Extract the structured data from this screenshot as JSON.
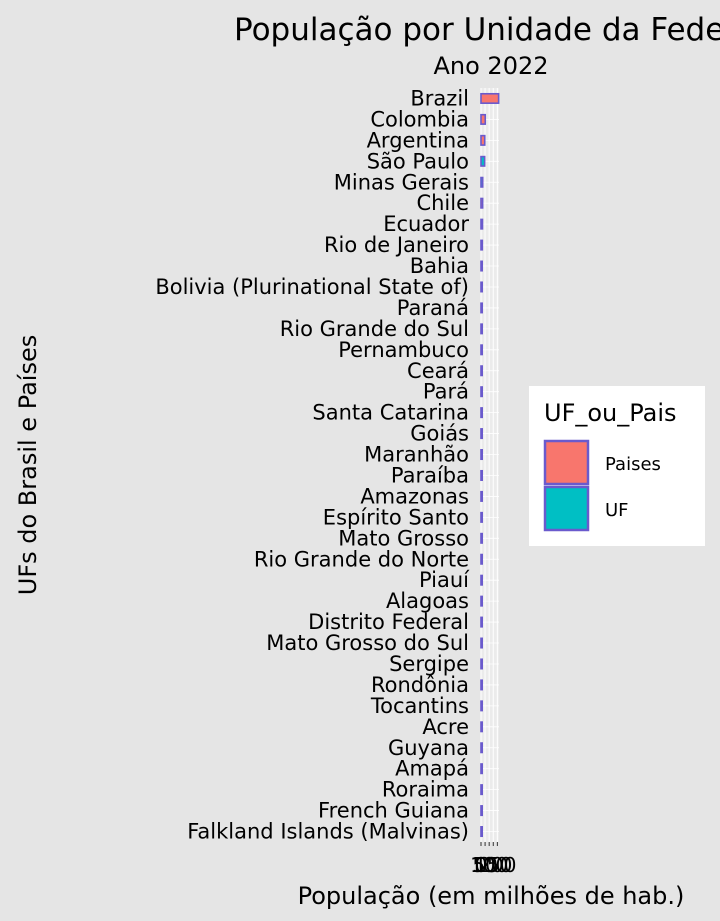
{
  "chart_data": {
    "type": "bar",
    "orientation": "horizontal",
    "title": "População por Unidade da Federação",
    "subtitle": "Ano 2022",
    "xlabel": "População (em milhões de hab.)",
    "ylabel": "UFs do Brasil e Países",
    "xlim": [
      0,
      220
    ],
    "x_ticks": [
      "0",
      "50",
      "100",
      "150",
      "200"
    ],
    "grid": true,
    "legend": {
      "title": "UF_ou_Pais",
      "position": "right",
      "entries": [
        {
          "label": "Paises",
          "color": "#f8766d"
        },
        {
          "label": "UF",
          "color": "#00bfc4"
        }
      ]
    },
    "bar_outline_color": "#6a5acd",
    "categories": [
      "Brazil",
      "Colombia",
      "Argentina",
      "São Paulo",
      "Minas Gerais",
      "Chile",
      "Ecuador",
      "Rio de Janeiro",
      "Bahia",
      "Bolivia (Plurinational State of)",
      "Paraná",
      "Rio Grande do Sul",
      "Pernambuco",
      "Ceará",
      "Pará",
      "Santa Catarina",
      "Goiás",
      "Maranhão",
      "Paraíba",
      "Amazonas",
      "Espírito Santo",
      "Mato Grosso",
      "Rio Grande do Norte",
      "Piauí",
      "Alagoas",
      "Distrito Federal",
      "Mato Grosso do Sul",
      "Sergipe",
      "Rondônia",
      "Tocantins",
      "Acre",
      "Guyana",
      "Amapá",
      "Roraima",
      "French Guiana",
      "Falkland Islands (Malvinas)"
    ],
    "series": [
      {
        "name": "Paises",
        "values": [
          215.3,
          51.9,
          45.5,
          null,
          null,
          19.6,
          18.0,
          null,
          null,
          12.2,
          null,
          null,
          null,
          null,
          null,
          null,
          null,
          null,
          null,
          null,
          null,
          null,
          null,
          null,
          null,
          null,
          null,
          null,
          null,
          null,
          null,
          0.8,
          null,
          null,
          0.3,
          0.004
        ]
      },
      {
        "name": "UF",
        "values": [
          null,
          null,
          null,
          44.4,
          20.5,
          null,
          null,
          16.1,
          14.1,
          null,
          11.4,
          10.9,
          9.1,
          8.8,
          8.1,
          7.6,
          7.1,
          6.8,
          4.0,
          3.9,
          3.8,
          3.7,
          3.3,
          3.3,
          3.1,
          2.8,
          2.8,
          2.2,
          1.6,
          1.5,
          0.8,
          null,
          0.7,
          0.6,
          null,
          null
        ]
      }
    ]
  }
}
